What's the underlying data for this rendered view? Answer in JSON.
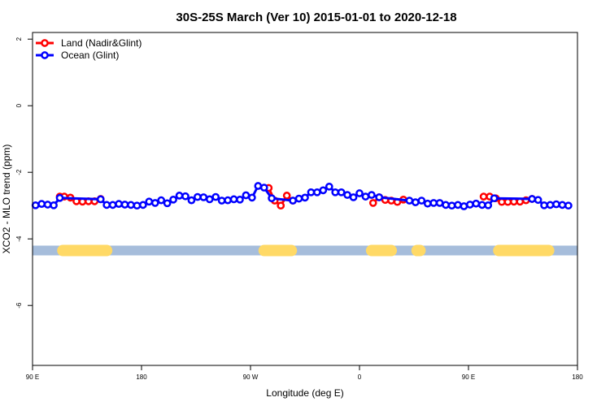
{
  "chart_data": {
    "type": "line",
    "title": "30S-25S March (Ver 10)   2015-01-01 to 2020-12-18",
    "xlabel": "Longitude (deg E)",
    "ylabel": "XCO2 - MLO trend (ppm)",
    "xlim": [
      90,
      450
    ],
    "ylim": [
      -7.8,
      2.2
    ],
    "x_ticks": [
      {
        "value": 90,
        "label": "90 E"
      },
      {
        "value": 162,
        "label": "180"
      },
      {
        "value": 234,
        "label": "90 W"
      },
      {
        "value": 306,
        "label": "0"
      },
      {
        "value": 378,
        "label": "90 E"
      },
      {
        "value": 450,
        "label": "180"
      }
    ],
    "y_ticks": [
      {
        "value": 2,
        "label": "2"
      },
      {
        "value": 0,
        "label": "0"
      },
      {
        "value": -2,
        "label": "-2"
      },
      {
        "value": -4,
        "label": "-4"
      },
      {
        "value": -6,
        "label": "-6"
      }
    ],
    "grid": false,
    "legend_position": "top-left",
    "series": [
      {
        "name": "Land (Nadir&Glint)",
        "color": "#ff0000",
        "segments": [
          [
            [
              108,
              -2.73
            ],
            [
              111,
              -2.73
            ],
            [
              115,
              -2.76
            ],
            [
              119,
              -2.87
            ],
            [
              123,
              -2.88
            ],
            [
              127,
              -2.87
            ],
            [
              131,
              -2.87
            ],
            [
              135,
              -2.8
            ]
          ],
          [
            [
              246,
              -2.47
            ],
            [
              250,
              -2.85
            ],
            [
              254,
              -3.0
            ],
            [
              258,
              -2.7
            ],
            [
              262,
              -2.85
            ]
          ],
          [
            [
              315,
              -2.92
            ],
            [
              319,
              -2.75
            ],
            [
              323,
              -2.83
            ],
            [
              327,
              -2.85
            ],
            [
              331,
              -2.89
            ],
            [
              335,
              -2.82
            ]
          ],
          [
            [
              388,
              -2.73
            ],
            [
              392,
              -2.73
            ],
            [
              396,
              -2.78
            ],
            [
              400,
              -2.89
            ],
            [
              404,
              -2.89
            ],
            [
              408,
              -2.88
            ],
            [
              412,
              -2.88
            ],
            [
              416,
              -2.84
            ],
            [
              420,
              -2.8
            ]
          ]
        ]
      },
      {
        "name": "Ocean (Glint)",
        "color": "#0000ff",
        "segments": [
          [
            [
              92,
              -2.99
            ],
            [
              96,
              -2.95
            ],
            [
              100,
              -2.97
            ],
            [
              104,
              -2.99
            ],
            [
              108,
              -2.77
            ],
            [
              135,
              -2.81
            ],
            [
              139,
              -2.98
            ],
            [
              143,
              -2.98
            ],
            [
              147,
              -2.95
            ],
            [
              151,
              -2.97
            ],
            [
              155,
              -2.98
            ],
            [
              159,
              -3.0
            ],
            [
              163,
              -2.98
            ],
            [
              167,
              -2.88
            ],
            [
              171,
              -2.92
            ],
            [
              175,
              -2.84
            ],
            [
              179,
              -2.93
            ],
            [
              183,
              -2.82
            ],
            [
              187,
              -2.7
            ],
            [
              191,
              -2.72
            ],
            [
              195,
              -2.84
            ],
            [
              199,
              -2.74
            ],
            [
              203,
              -2.75
            ],
            [
              207,
              -2.81
            ],
            [
              211,
              -2.74
            ],
            [
              215,
              -2.85
            ],
            [
              219,
              -2.84
            ],
            [
              223,
              -2.81
            ],
            [
              227,
              -2.82
            ],
            [
              231,
              -2.69
            ],
            [
              235,
              -2.76
            ],
            [
              239,
              -2.41
            ],
            [
              243,
              -2.46
            ],
            [
              248,
              -2.78
            ],
            [
              262,
              -2.85
            ],
            [
              266,
              -2.79
            ],
            [
              270,
              -2.76
            ],
            [
              274,
              -2.6
            ],
            [
              278,
              -2.6
            ],
            [
              282,
              -2.54
            ],
            [
              286,
              -2.43
            ],
            [
              290,
              -2.6
            ],
            [
              294,
              -2.6
            ],
            [
              298,
              -2.68
            ],
            [
              302,
              -2.75
            ],
            [
              306,
              -2.63
            ],
            [
              310,
              -2.73
            ],
            [
              314,
              -2.68
            ],
            [
              319,
              -2.75
            ],
            [
              339,
              -2.85
            ],
            [
              343,
              -2.9
            ],
            [
              347,
              -2.85
            ],
            [
              351,
              -2.94
            ],
            [
              355,
              -2.92
            ],
            [
              359,
              -2.92
            ],
            [
              363,
              -2.98
            ],
            [
              367,
              -3.0
            ],
            [
              371,
              -2.98
            ],
            [
              375,
              -3.02
            ],
            [
              379,
              -2.97
            ],
            [
              383,
              -2.94
            ],
            [
              387,
              -2.98
            ],
            [
              391,
              -2.99
            ],
            [
              395,
              -2.78
            ],
            [
              420,
              -2.8
            ],
            [
              424,
              -2.83
            ],
            [
              428,
              -2.99
            ],
            [
              432,
              -2.98
            ],
            [
              436,
              -2.96
            ],
            [
              440,
              -2.98
            ],
            [
              444,
              -3.0
            ]
          ]
        ]
      }
    ],
    "surface_band": {
      "y": -4.35,
      "base_color": "#a6bddb",
      "land_color": "#ffd966",
      "land_spans": [
        [
          110,
          139
        ],
        [
          243,
          261
        ],
        [
          314,
          327
        ],
        [
          344,
          346
        ],
        [
          398,
          431
        ]
      ]
    }
  }
}
